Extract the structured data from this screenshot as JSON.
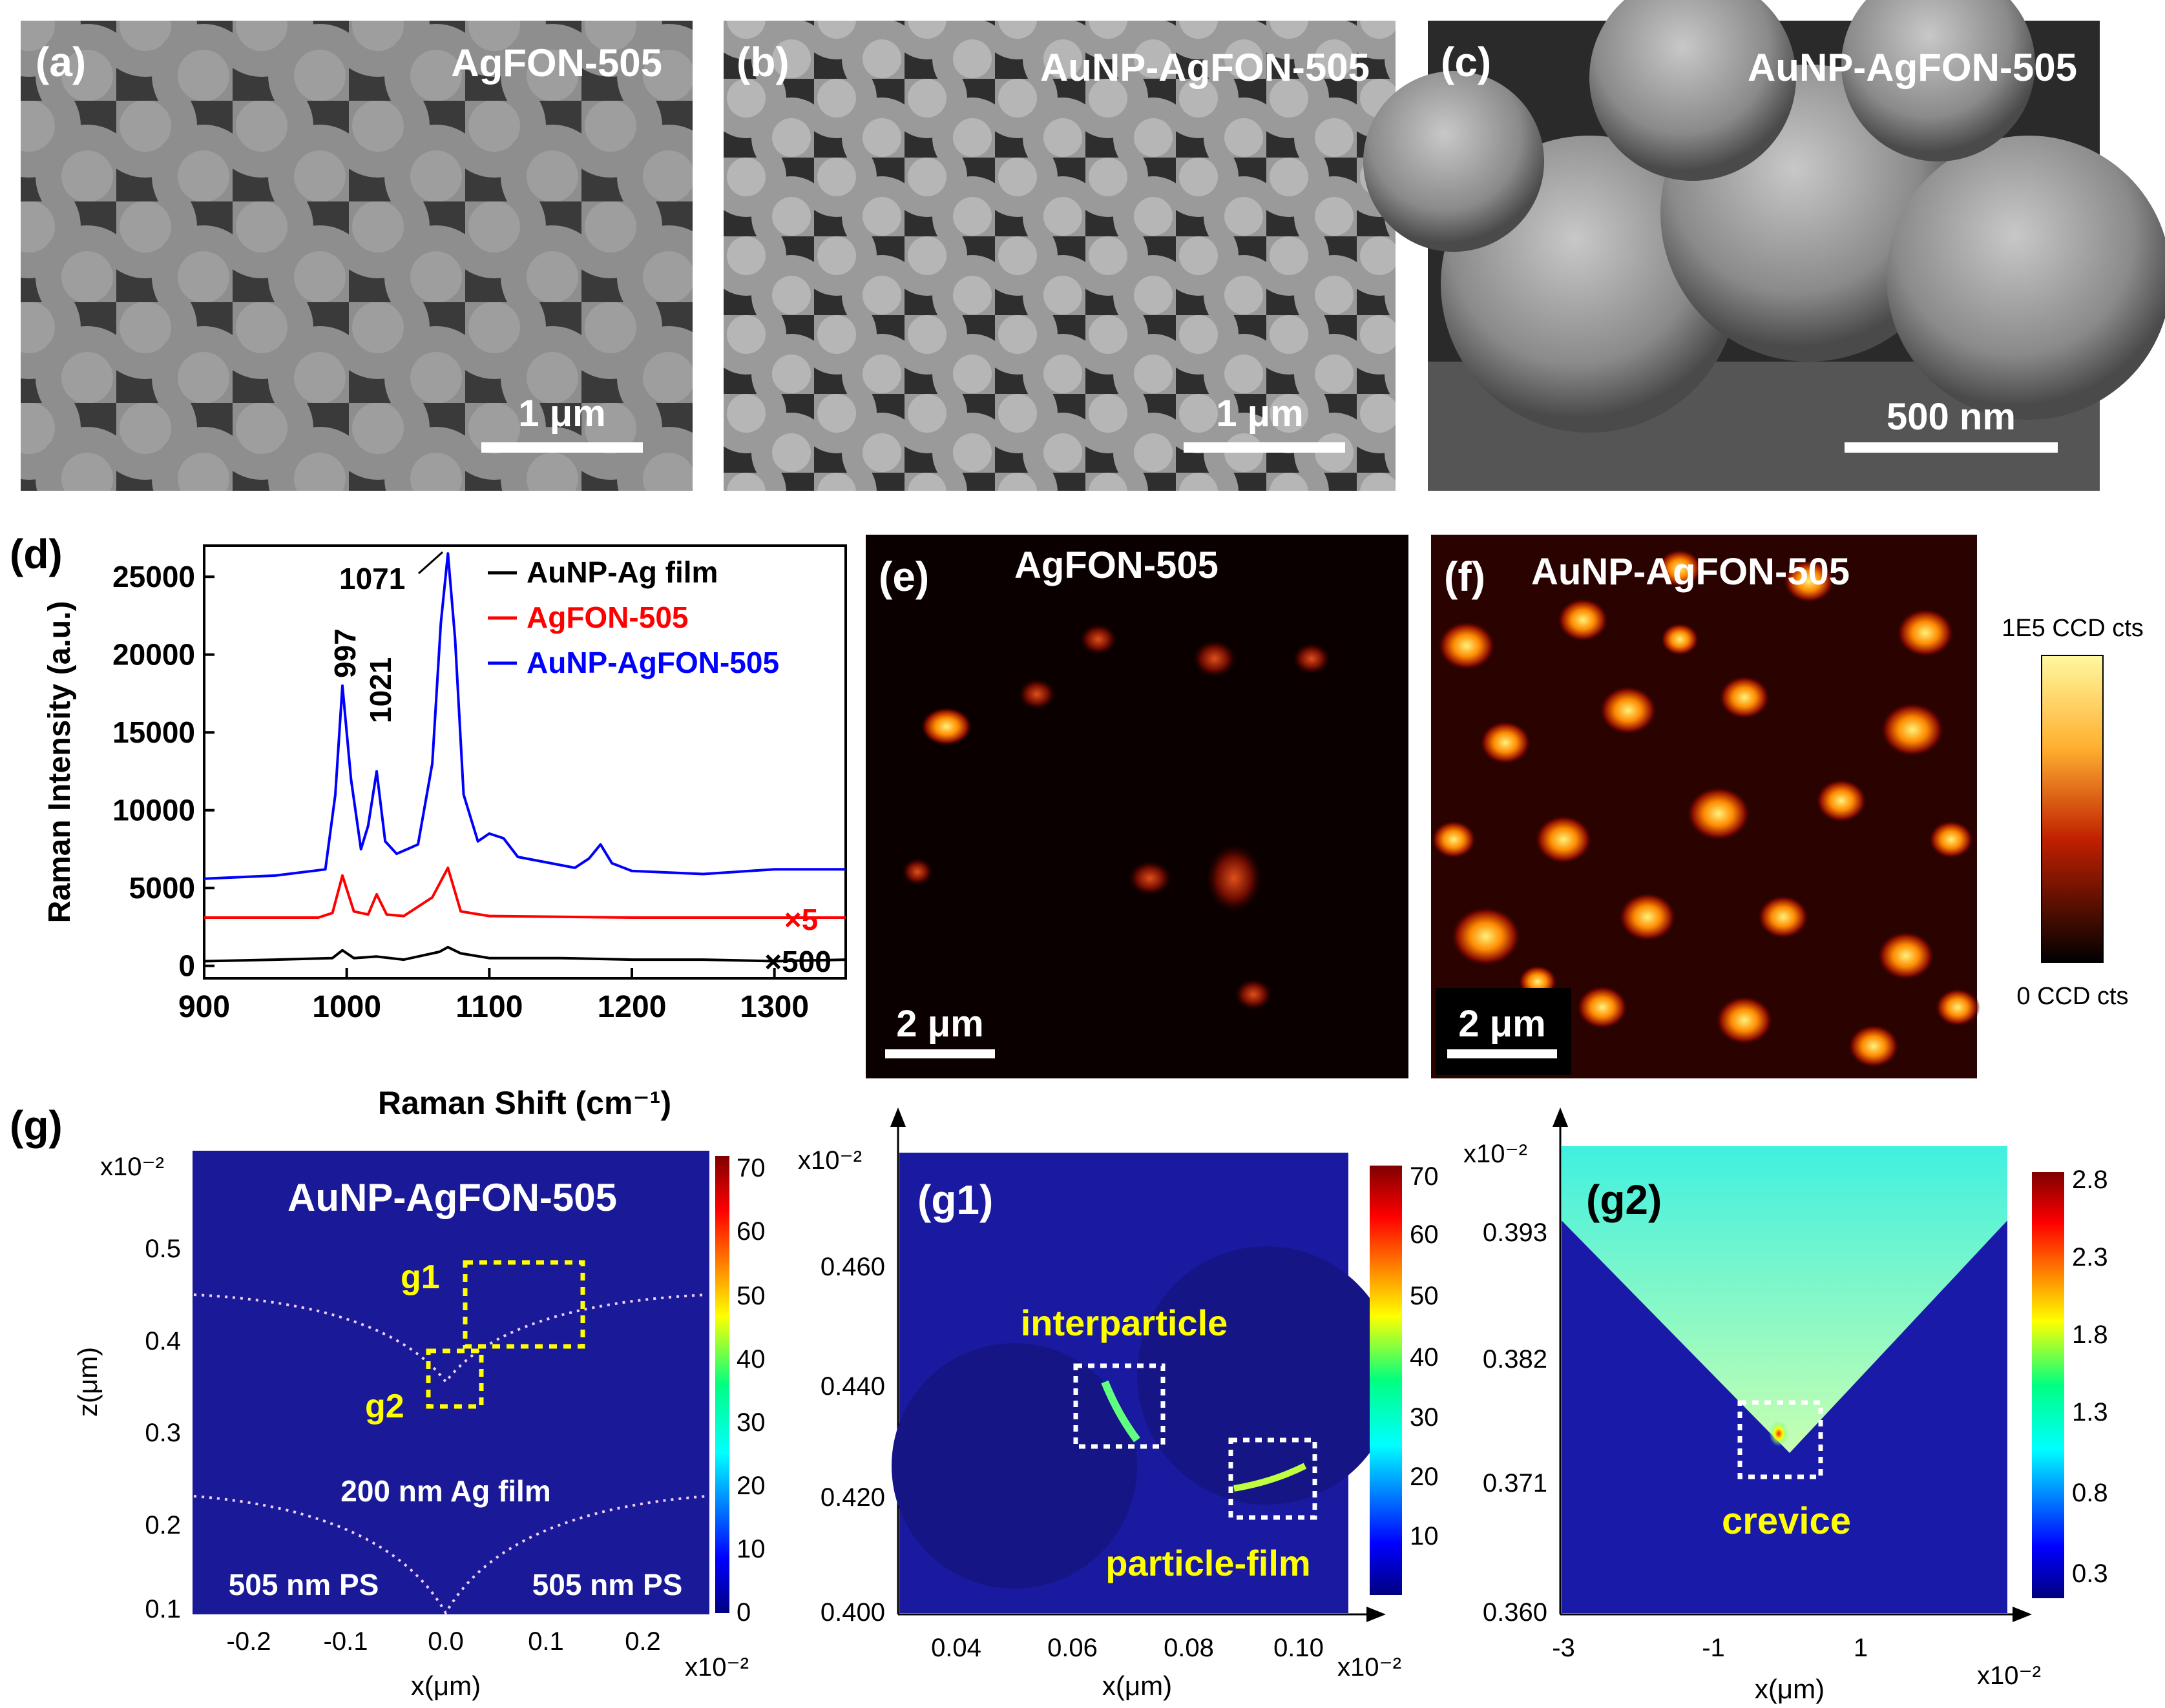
{
  "panels": {
    "a": {
      "letter": "(a)",
      "title": "AgFON-505",
      "scale": "1 μm"
    },
    "b": {
      "letter": "(b)",
      "title": "AuNP-AgFON-505",
      "scale": "1 μm"
    },
    "c": {
      "letter": "(c)",
      "title": "AuNP-AgFON-505",
      "scale": "500 nm"
    },
    "d": {
      "letter": "(d)",
      "ylabel": "Raman Intensity (a.u.)",
      "xlabel": "Raman Shift (cm⁻¹)",
      "peaks": {
        "p997": "997",
        "p1021": "1021",
        "p1071": "1071"
      },
      "multipliers": {
        "red": "×5",
        "black": "×500"
      }
    },
    "e": {
      "letter": "(e)",
      "title": "AgFON-505",
      "scale": "2 μm"
    },
    "f": {
      "letter": "(f)",
      "title": "AuNP-AgFON-505",
      "scale": "2 μm"
    },
    "colorbar_ef": {
      "top": "1E5 CCD cts",
      "bottom": "0 CCD cts"
    },
    "g": {
      "letter": "(g)",
      "title": "AuNP-AgFON-505",
      "exp": "x10⁻²",
      "xexp": "x10⁻²",
      "box1": "g1",
      "box2": "g2",
      "film": "200 nm Ag film",
      "psl": "505 nm PS",
      "psr": "505 nm PS",
      "ylabel": "z(μm)",
      "xlabel": "x(μm)",
      "yticks": [
        "0.5",
        "0.4",
        "0.3",
        "0.2",
        "0.1"
      ],
      "xticks": [
        "-0.2",
        "-0.1",
        "0.0",
        "0.1",
        "0.2"
      ],
      "cbticks": [
        "70",
        "60",
        "50",
        "40",
        "30",
        "20",
        "10",
        "0"
      ]
    },
    "g1": {
      "letter": "(g1)",
      "exp": "x10⁻²",
      "xexp": "x10⁻²",
      "inter": "interparticle",
      "pfilm": "particle-film",
      "xlabel": "x(μm)",
      "yticks": [
        "0.460",
        "0.440",
        "0.420",
        "0.400"
      ],
      "xticks": [
        "0.04",
        "0.06",
        "0.08",
        "0.10"
      ],
      "cbticks": [
        "70",
        "60",
        "50",
        "40",
        "30",
        "20",
        "10"
      ]
    },
    "g2": {
      "letter": "(g2)",
      "exp": "x10⁻²",
      "xexp": "x10⁻²",
      "crevice": "crevice",
      "xlabel": "x(μm)",
      "yticks": [
        "0.393",
        "0.382",
        "0.371",
        "0.360"
      ],
      "xticks": [
        "-3",
        "-1",
        "1"
      ],
      "cbticks": [
        "2.8",
        "2.3",
        "1.8",
        "1.3",
        "0.8",
        "0.3"
      ]
    }
  },
  "chart_data": {
    "type": "line",
    "title": "",
    "xlabel": "Raman Shift (cm⁻¹)",
    "ylabel": "Raman Intensity (a.u.)",
    "xlim": [
      900,
      1350
    ],
    "ylim": [
      -800,
      27000
    ],
    "xticks": [
      "900",
      "1000",
      "1100",
      "1200",
      "1300"
    ],
    "yticks": [
      "0",
      "5000",
      "10000",
      "15000",
      "20000",
      "25000"
    ],
    "legend_position": "top-right",
    "series": [
      {
        "name": "AuNP-Ag film",
        "color": "#000000",
        "x": [
          900,
          950,
          990,
          997,
          1005,
          1021,
          1040,
          1065,
          1071,
          1080,
          1100,
          1150,
          1200,
          1250,
          1300,
          1350
        ],
        "y": [
          300,
          400,
          500,
          1000,
          500,
          600,
          400,
          900,
          1200,
          800,
          500,
          500,
          400,
          400,
          300,
          400
        ]
      },
      {
        "name": "AgFON-505",
        "color": "#ff0000",
        "x": [
          900,
          980,
          990,
          997,
          1005,
          1015,
          1021,
          1028,
          1040,
          1060,
          1071,
          1080,
          1100,
          1200,
          1300,
          1350
        ],
        "y": [
          3100,
          3100,
          3400,
          5800,
          3500,
          3300,
          4600,
          3300,
          3200,
          4400,
          6300,
          3500,
          3200,
          3100,
          3100,
          3100
        ]
      },
      {
        "name": "AuNP-AgFON-505",
        "color": "#0000ff",
        "x": [
          900,
          950,
          985,
          992,
          997,
          1003,
          1010,
          1015,
          1021,
          1027,
          1035,
          1050,
          1060,
          1066,
          1071,
          1076,
          1082,
          1092,
          1100,
          1110,
          1120,
          1160,
          1170,
          1178,
          1186,
          1200,
          1250,
          1300,
          1350
        ],
        "y": [
          5600,
          5800,
          6200,
          11000,
          18000,
          12000,
          7500,
          9000,
          12500,
          8000,
          7200,
          7800,
          13000,
          22000,
          26500,
          21000,
          11000,
          8000,
          8500,
          8200,
          7000,
          6300,
          6900,
          7800,
          6600,
          6100,
          5900,
          6200,
          6200
        ]
      }
    ]
  }
}
